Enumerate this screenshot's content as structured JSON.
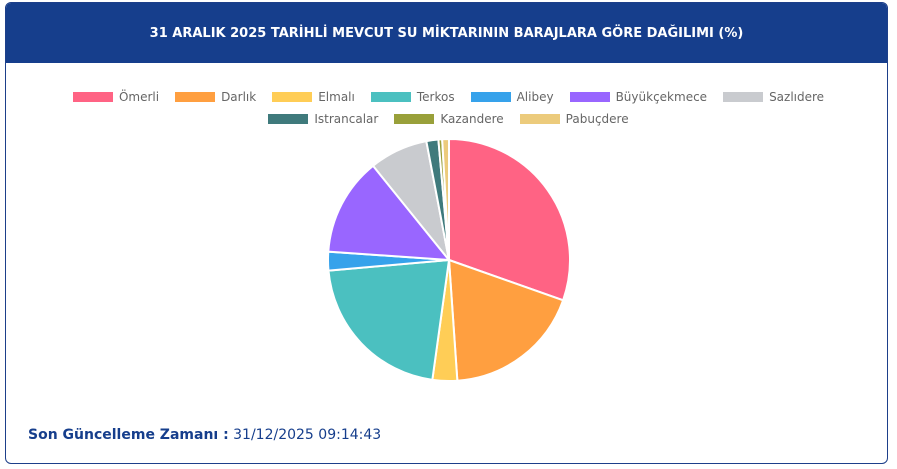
{
  "chart_data": {
    "type": "pie",
    "title": "31 ARALIK 2025 TARİHLİ MEVCUT SU MİKTARININ BARAJLARA GÖRE DAĞILIMI (%)",
    "categories": [
      "Ömerli",
      "Darlık",
      "Elmalı",
      "Terkos",
      "Alibey",
      "Büyükçekmece",
      "Sazlıdere",
      "Istrancalar",
      "Kazandere",
      "Pabuçdere"
    ],
    "values": [
      30.4,
      18.5,
      3.3,
      21.4,
      2.5,
      13.1,
      7.8,
      1.6,
      0.5,
      0.9
    ],
    "colors": [
      "#ff6384",
      "#ff9f40",
      "#ffcd56",
      "#4bc0c0",
      "#36a2eb",
      "#9966ff",
      "#c9cbcf",
      "#3f7a7c",
      "#99a03a",
      "#eccb7c"
    ],
    "legend": "top"
  },
  "footer": {
    "label": "Son Güncelleme Zamanı :",
    "value": "31/12/2025 09:14:43"
  }
}
